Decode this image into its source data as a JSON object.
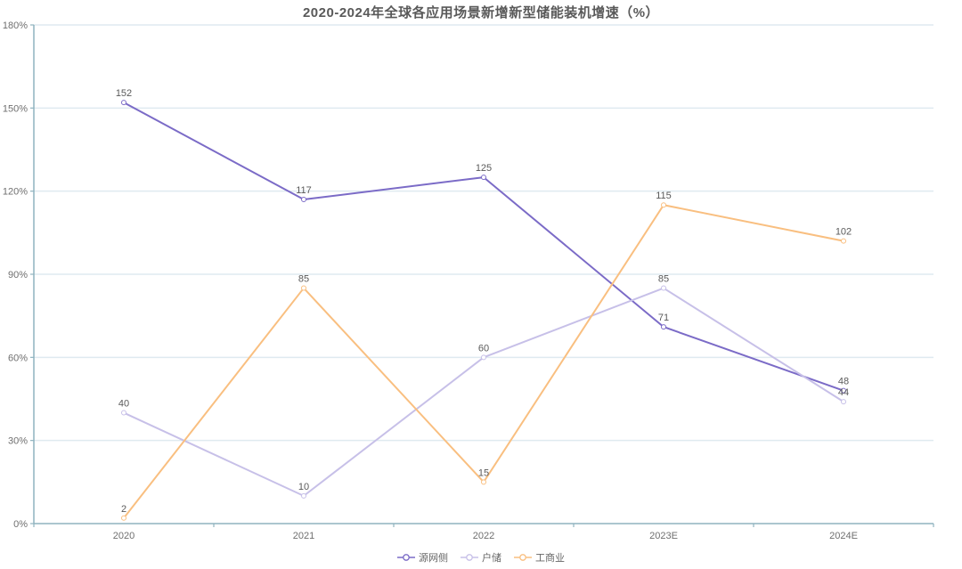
{
  "chart_data": {
    "type": "line",
    "title": "2020-2024年全球各应用场景新增新型储能装机增速（%）",
    "categories": [
      "2020",
      "2021",
      "2022",
      "2023E",
      "2024E"
    ],
    "series": [
      {
        "name": "源网侧",
        "color": "#7b6bc7",
        "values": [
          152,
          117,
          125,
          71,
          48
        ]
      },
      {
        "name": "户储",
        "color": "#c7c0e8",
        "values": [
          40,
          10,
          60,
          85,
          44
        ]
      },
      {
        "name": "工商业",
        "color": "#f9bf80",
        "values": [
          2,
          85,
          15,
          115,
          102
        ]
      }
    ],
    "y_axis": {
      "min": 0,
      "max": 180,
      "step": 30,
      "labels": [
        "0%",
        "30%",
        "60%",
        "90%",
        "120%",
        "150%",
        "180%"
      ]
    },
    "xlabel": "",
    "ylabel": "",
    "grid": true,
    "legend_position": "bottom",
    "colors": {
      "axis": "#8fb3bf",
      "gridline": "#dfeaf0",
      "title_text": "#595959",
      "tick_text": "#6f6f6f",
      "data_label_text": "#595959",
      "marker_fill": "#ffffff"
    }
  }
}
